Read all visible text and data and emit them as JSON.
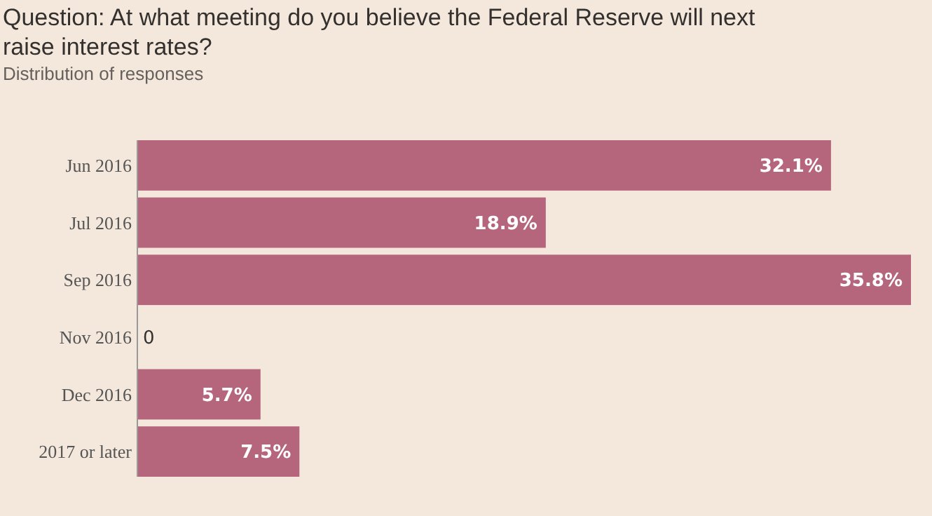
{
  "chart_data": {
    "type": "bar",
    "orientation": "horizontal",
    "title": "Question: At what meeting do you believe the Federal Reserve will next raise interest rates?",
    "subtitle": "Distribution of responses",
    "categories": [
      "Jun 2016",
      "Jul 2016",
      "Sep 2016",
      "Nov 2016",
      "Dec 2016",
      "2017 or later"
    ],
    "values": [
      32.1,
      18.9,
      35.8,
      0,
      5.7,
      7.5
    ],
    "value_labels": [
      "32.1%",
      "18.9%",
      "35.8%",
      "0",
      "5.7%",
      "7.5%"
    ],
    "color": "#b5667c"
  }
}
